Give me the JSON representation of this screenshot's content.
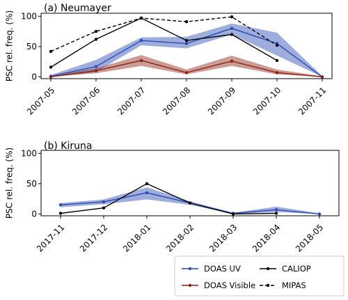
{
  "colors": {
    "doas_uv": "#2b49b2",
    "doas_visible": "#8b2315",
    "caliop": "#000000",
    "mipas": "#000000"
  },
  "chart_data": [
    {
      "type": "line",
      "title": "(a) Neumayer",
      "ylabel": "PSC rel. freq. (%)",
      "ylim": [
        -3,
        105
      ],
      "yticks": [
        0,
        50,
        100
      ],
      "categories": [
        "2007-05",
        "2007-06",
        "2007-07",
        "2007-08",
        "2007-09",
        "2007-10",
        "2007-11"
      ],
      "grid": false,
      "series": [
        {
          "name": "DOAS UV",
          "style": "solid-dot",
          "color": "#2b49b2",
          "values": [
            1,
            17,
            60,
            55,
            80,
            55,
            0
          ],
          "band_low": [
            0,
            8,
            52,
            47,
            70,
            35,
            0
          ],
          "band_high": [
            3,
            28,
            65,
            66,
            88,
            73,
            1
          ]
        },
        {
          "name": "DOAS Visible",
          "style": "solid-dot",
          "color": "#8b2315",
          "values": [
            0,
            10,
            27,
            7,
            26,
            7,
            0
          ],
          "band_low": [
            0,
            6,
            18,
            4,
            18,
            4,
            0
          ],
          "band_high": [
            2,
            14,
            36,
            12,
            35,
            12,
            1
          ]
        },
        {
          "name": "CALIOP",
          "style": "solid-dot",
          "color": "#000000",
          "values": [
            16,
            62,
            97,
            60,
            70,
            27,
            null
          ]
        },
        {
          "name": "MIPAS",
          "style": "dashed-dot",
          "color": "#000000",
          "values": [
            42,
            75,
            97,
            91,
            99,
            52,
            null
          ]
        }
      ]
    },
    {
      "type": "line",
      "title": "(b) Kiruna",
      "ylabel": "PSC rel. freq. (%)",
      "ylim": [
        -3,
        105
      ],
      "yticks": [
        0,
        50,
        100
      ],
      "categories": [
        "2017-11",
        "2017-12",
        "2018-01",
        "2018-02",
        "2018-03",
        "2018-04",
        "2018-05"
      ],
      "grid": false,
      "series": [
        {
          "name": "DOAS UV",
          "style": "solid-dot",
          "color": "#2b49b2",
          "values": [
            15,
            20,
            35,
            18,
            1,
            7,
            0
          ],
          "band_low": [
            11,
            16,
            24,
            15,
            0,
            3,
            0
          ],
          "band_high": [
            18,
            24,
            44,
            21,
            2,
            12,
            1
          ]
        },
        {
          "name": "CALIOP",
          "style": "solid-dot",
          "color": "#000000",
          "values": [
            1,
            10,
            50,
            18,
            0,
            1,
            null
          ]
        }
      ]
    }
  ],
  "legend": {
    "placement": "bottom-right",
    "items": [
      {
        "label": "DOAS UV",
        "color": "#2b49b2",
        "dash": false
      },
      {
        "label": "CALIOP",
        "color": "#000000",
        "dash": false
      },
      {
        "label": "DOAS Visible",
        "color": "#8b2315",
        "dash": false
      },
      {
        "label": "MIPAS",
        "color": "#000000",
        "dash": true
      }
    ]
  }
}
